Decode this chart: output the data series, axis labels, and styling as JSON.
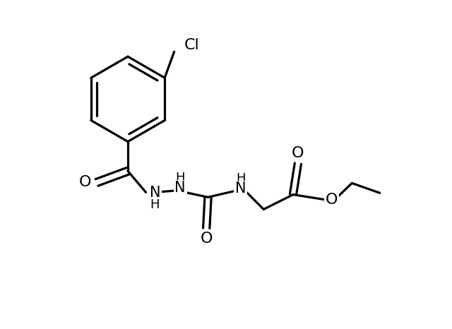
{
  "background_color": "#ffffff",
  "line_color": "#000000",
  "line_width": 2.3,
  "font_size_label": 15,
  "fig_width": 6.4,
  "fig_height": 4.66,
  "xlim": [
    0,
    12
  ],
  "ylim": [
    0,
    10
  ]
}
